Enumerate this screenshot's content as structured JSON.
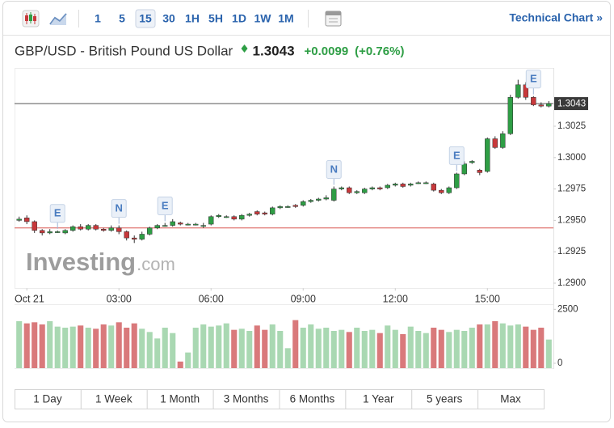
{
  "toolbar": {
    "intervals": [
      "1",
      "5",
      "15",
      "30",
      "1H",
      "5H",
      "1D",
      "1W",
      "1M"
    ],
    "selected_interval": "15",
    "link": "Technical Chart »"
  },
  "header": {
    "title": "GBP/USD - British Pound US Dollar",
    "price": "1.3043",
    "change": "+0.0099",
    "change_percent": "(+0.76%)"
  },
  "watermark": {
    "brand": "Investing",
    "suffix": ".com"
  },
  "ranges": [
    "1 Day",
    "1 Week",
    "1 Month",
    "3 Months",
    "6 Months",
    "1 Year",
    "5 years",
    "Max"
  ],
  "chart_data": {
    "type": "candlestick",
    "x": [
      -0.25,
      0,
      0.25,
      0.5,
      0.75,
      1,
      1.25,
      1.5,
      1.75,
      2,
      2.25,
      2.5,
      2.75,
      3,
      3.25,
      3.5,
      3.75,
      4,
      4.25,
      4.5,
      4.75,
      5,
      5.25,
      5.5,
      5.75,
      6,
      6.25,
      6.5,
      6.75,
      7,
      7.25,
      7.5,
      7.75,
      8,
      8.25,
      8.5,
      8.75,
      9,
      9.25,
      9.5,
      9.75,
      10,
      10.25,
      10.5,
      10.75,
      11,
      11.25,
      11.5,
      11.75,
      12,
      12.25,
      12.5,
      12.75,
      13,
      13.25,
      13.5,
      13.75,
      14,
      14.25,
      14.5,
      14.75,
      15,
      15.25,
      15.5,
      15.75,
      16,
      16.25,
      16.5,
      16.75,
      17
    ],
    "open": [
      1.295,
      1.2952,
      1.2949,
      1.2942,
      1.294,
      1.2941,
      1.294,
      1.2942,
      1.2945,
      1.2943,
      1.2946,
      1.2943,
      1.2942,
      1.2944,
      1.2941,
      1.2936,
      1.2935,
      1.2939,
      1.2944,
      1.2946,
      1.2946,
      1.2948,
      1.2947,
      1.2947,
      1.2946,
      1.2947,
      1.2953,
      1.2953,
      1.2953,
      1.2951,
      1.2954,
      1.2957,
      1.2956,
      1.2955,
      1.296,
      1.2961,
      1.2962,
      1.2962,
      1.2965,
      1.2966,
      1.2967,
      1.2966,
      1.2975,
      1.2976,
      1.2972,
      1.2972,
      1.2975,
      1.2976,
      1.2976,
      1.2978,
      1.2979,
      1.2978,
      1.298,
      1.298,
      1.2979,
      1.2974,
      1.2972,
      1.2976,
      1.2987,
      1.2996,
      1.299,
      1.2989,
      1.3015,
      1.3008,
      1.3019,
      1.3048,
      1.3058,
      1.3048,
      1.3042,
      1.3041
    ],
    "high": [
      1.2953,
      1.2954,
      1.295,
      1.2943,
      1.2943,
      1.2942,
      1.2943,
      1.2946,
      1.2947,
      1.2947,
      1.2947,
      1.2944,
      1.2946,
      1.2946,
      1.2942,
      1.2938,
      1.2941,
      1.2945,
      1.2947,
      1.2948,
      1.2951,
      1.2949,
      1.2948,
      1.2948,
      1.2948,
      1.2954,
      1.2955,
      1.2954,
      1.2954,
      1.2955,
      1.2956,
      1.2958,
      1.2957,
      1.2961,
      1.2962,
      1.2962,
      1.2963,
      1.2966,
      1.2967,
      1.2968,
      1.297,
      1.2977,
      1.2977,
      1.2977,
      1.2974,
      1.2976,
      1.2977,
      1.2977,
      1.2979,
      1.298,
      1.298,
      1.298,
      1.2981,
      1.2981,
      1.298,
      1.2975,
      1.2977,
      1.2988,
      1.2997,
      1.2998,
      1.2991,
      1.3016,
      1.3017,
      1.3021,
      1.305,
      1.3062,
      1.306,
      1.3049,
      1.3044,
      1.3045
    ],
    "low": [
      1.2949,
      1.2947,
      1.294,
      1.2938,
      1.2939,
      1.294,
      1.2939,
      1.2941,
      1.2942,
      1.2942,
      1.2942,
      1.2941,
      1.2941,
      1.2939,
      1.2934,
      1.2932,
      1.2934,
      1.2938,
      1.2943,
      1.2945,
      1.2945,
      1.2946,
      1.2946,
      1.2946,
      1.2944,
      1.2946,
      1.2952,
      1.2952,
      1.295,
      1.295,
      1.2953,
      1.2954,
      1.2954,
      1.2954,
      1.2959,
      1.296,
      1.296,
      1.2961,
      1.2964,
      1.2965,
      1.2966,
      1.2965,
      1.2974,
      1.2971,
      1.2971,
      1.2971,
      1.2974,
      1.2974,
      1.2975,
      1.2977,
      1.2976,
      1.2977,
      1.2979,
      1.2979,
      1.2973,
      1.2971,
      1.2971,
      1.2975,
      1.2986,
      1.2995,
      1.2986,
      1.2988,
      1.3007,
      1.3007,
      1.3018,
      1.3047,
      1.3046,
      1.3041,
      1.304,
      1.304
    ],
    "close": [
      1.2951,
      1.2949,
      1.2942,
      1.294,
      1.2941,
      1.2941,
      1.2942,
      1.2945,
      1.2943,
      1.2946,
      1.2943,
      1.2942,
      1.2944,
      1.2941,
      1.2936,
      1.2935,
      1.2939,
      1.2944,
      1.2946,
      1.2946,
      1.2949,
      1.2947,
      1.2947,
      1.2947,
      1.2946,
      1.2953,
      1.2954,
      1.2953,
      1.2951,
      1.2954,
      1.2955,
      1.2955,
      1.2955,
      1.296,
      1.2961,
      1.2961,
      1.2961,
      1.2965,
      1.2966,
      1.2967,
      1.2968,
      1.2975,
      1.2976,
      1.2972,
      1.2973,
      1.2975,
      1.2976,
      1.2975,
      1.2978,
      1.2979,
      1.2977,
      1.2979,
      1.298,
      1.298,
      1.2974,
      1.2972,
      1.2976,
      1.2987,
      1.2995,
      1.2997,
      1.2988,
      1.3015,
      1.3008,
      1.3019,
      1.3048,
      1.3058,
      1.3048,
      1.3042,
      1.3041,
      1.3043
    ],
    "volume": [
      1950,
      1850,
      1900,
      1800,
      1950,
      1700,
      1650,
      1700,
      1750,
      1650,
      1600,
      1800,
      1750,
      1900,
      1650,
      1850,
      1600,
      1450,
      1150,
      1650,
      1400,
      80,
      500,
      1650,
      1800,
      1700,
      1750,
      1850,
      1550,
      1600,
      1500,
      1750,
      1550,
      1800,
      1500,
      700,
      2000,
      1650,
      1800,
      1600,
      1650,
      1500,
      1550,
      1450,
      1650,
      1500,
      1550,
      1400,
      1750,
      1550,
      1350,
      1700,
      1500,
      1400,
      1650,
      1550,
      1450,
      1550,
      1500,
      1650,
      1800,
      1800,
      1950,
      1850,
      1750,
      1800,
      1700,
      1550,
      1650,
      1100
    ],
    "xlim": [
      -0.4,
      17.15
    ],
    "xticks": [
      {
        "value": 0,
        "label": "Oct 21"
      },
      {
        "value": 3,
        "label": "03:00"
      },
      {
        "value": 6,
        "label": "06:00"
      },
      {
        "value": 9,
        "label": "09:00"
      },
      {
        "value": 12,
        "label": "12:00"
      },
      {
        "value": 15,
        "label": "15:00"
      }
    ],
    "ylim": [
      1.2896,
      1.3071
    ],
    "yticks": [
      {
        "value": 1.29,
        "label": "1.2900"
      },
      {
        "value": 1.2925,
        "label": "1.2925"
      },
      {
        "value": 1.295,
        "label": "1.2950"
      },
      {
        "value": 1.2975,
        "label": "1.2975"
      },
      {
        "value": 1.3,
        "label": "1.3000"
      },
      {
        "value": 1.3025,
        "label": "1.3025"
      }
    ],
    "volume_ylim": [
      0,
      2700
    ],
    "volume_yticks": [
      0,
      2500
    ],
    "last_price": {
      "value": 1.3043,
      "label": "1.3043"
    },
    "reference_line": 1.2944,
    "events": [
      {
        "label": "E",
        "x": 1
      },
      {
        "label": "N",
        "x": 3
      },
      {
        "label": "E",
        "x": 4.5
      },
      {
        "label": "N",
        "x": 10
      },
      {
        "label": "E",
        "x": 14
      },
      {
        "label": "E",
        "x": 16.5
      }
    ],
    "colors": {
      "up": "#2e9e45",
      "down": "#c8383b",
      "volume_up": "#a9d8b2",
      "volume_down": "#d9797b",
      "reference": "#d9534f",
      "last": "#555555"
    }
  }
}
